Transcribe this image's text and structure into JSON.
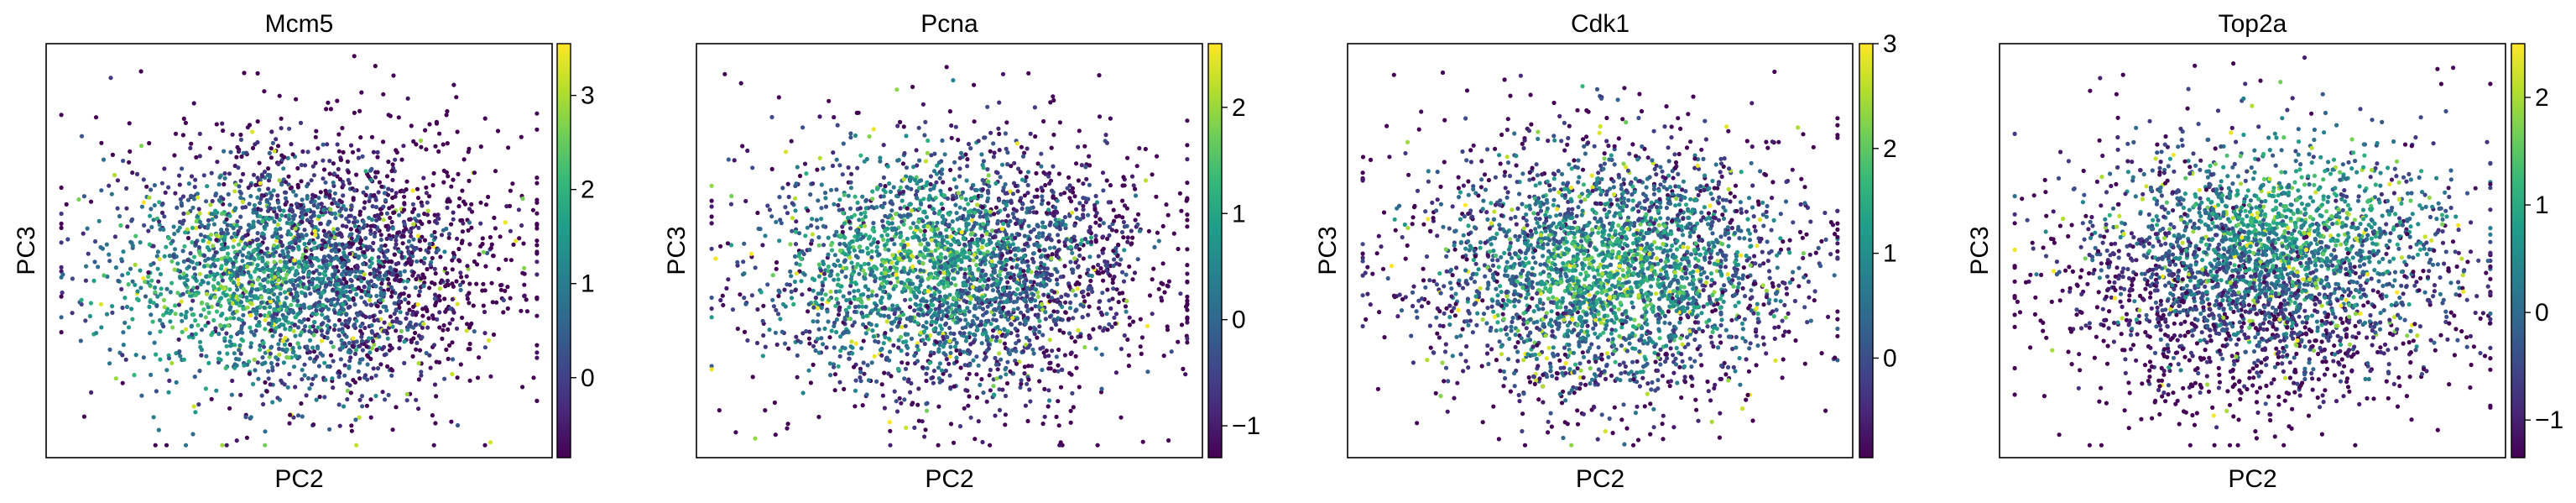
{
  "figure": {
    "colormap": "viridis",
    "colormap_stops": [
      "#440154",
      "#482878",
      "#3e4989",
      "#31688e",
      "#26828e",
      "#1f9e89",
      "#35b779",
      "#6ece58",
      "#b5de2b",
      "#fde725"
    ]
  },
  "chart_data": [
    {
      "type": "scatter",
      "title": "Mcm5",
      "xlabel": "PC2",
      "ylabel": "PC3",
      "xticks": [],
      "yticks": [],
      "colorbar": {
        "range": [
          -0.85,
          3.55
        ],
        "ticks": [
          0,
          1,
          2,
          3
        ],
        "tick_labels": [
          "0",
          "1",
          "2",
          "3"
        ]
      },
      "profile": "left",
      "point_count": 3000,
      "seed": 11
    },
    {
      "type": "scatter",
      "title": "Pcna",
      "xlabel": "PC2",
      "ylabel": "PC3",
      "xticks": [],
      "yticks": [],
      "colorbar": {
        "range": [
          -1.3,
          2.6
        ],
        "ticks": [
          -1,
          0,
          1,
          2
        ],
        "tick_labels": [
          "−1",
          "0",
          "1",
          "2"
        ]
      },
      "profile": "left-mid",
      "point_count": 3000,
      "seed": 23
    },
    {
      "type": "scatter",
      "title": "Cdk1",
      "xlabel": "PC2",
      "ylabel": "PC3",
      "xticks": [],
      "yticks": [],
      "colorbar": {
        "range": [
          -0.95,
          3.0
        ],
        "ticks": [
          0,
          1,
          2,
          3
        ],
        "tick_labels": [
          "0",
          "1",
          "2",
          "3"
        ]
      },
      "profile": "center",
      "point_count": 3000,
      "seed": 37
    },
    {
      "type": "scatter",
      "title": "Top2a",
      "xlabel": "PC2",
      "ylabel": "PC3",
      "xticks": [],
      "yticks": [],
      "colorbar": {
        "range": [
          -1.35,
          2.5
        ],
        "ticks": [
          -1,
          0,
          1,
          2
        ],
        "tick_labels": [
          "−1",
          "0",
          "1",
          "2"
        ]
      },
      "profile": "right",
      "point_count": 3000,
      "seed": 51
    }
  ]
}
